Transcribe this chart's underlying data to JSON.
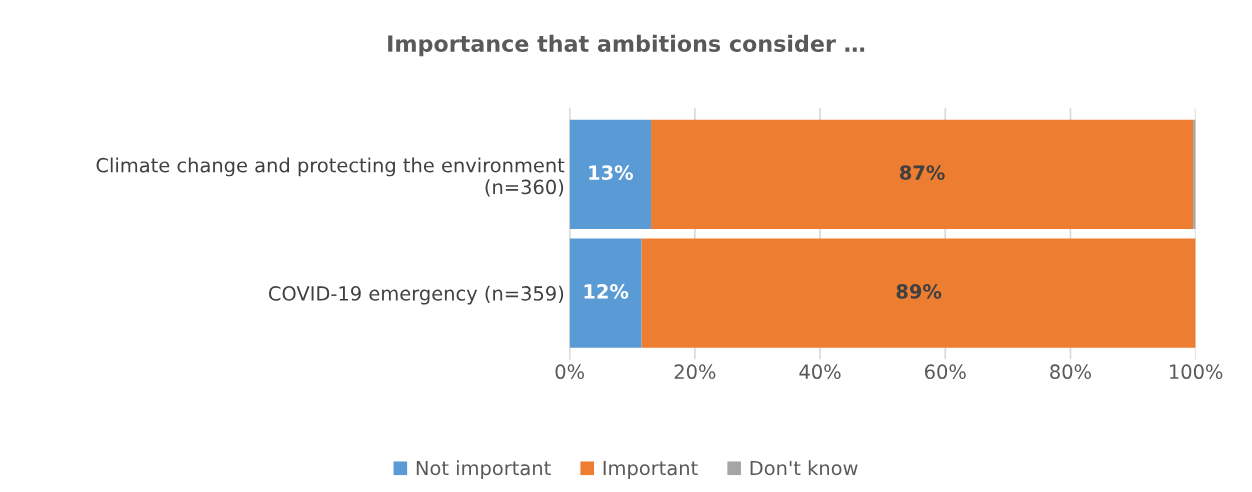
{
  "chart_data": {
    "type": "bar",
    "orientation": "horizontal",
    "stacked": true,
    "title": "Importance that ambitions consider …",
    "categories": [
      "Climate change and protecting the environment\n(n=360)",
      "COVID-19 emergency (n=359)"
    ],
    "series": [
      {
        "name": "Not important",
        "color": "#5b9bd5",
        "values": [
          13,
          11.5
        ],
        "value_labels": [
          "13%",
          "12%"
        ]
      },
      {
        "name": "Important",
        "color": "#ed7d31",
        "values": [
          86.6,
          88.5
        ],
        "value_labels": [
          "87%",
          "89%"
        ]
      },
      {
        "name": "Don't know",
        "color": "#a5a5a5",
        "values": [
          0.4,
          0
        ],
        "value_labels": [
          null,
          null
        ]
      }
    ],
    "xlim": [
      0,
      100
    ],
    "xticks": [
      {
        "value": 0,
        "label": "0%"
      },
      {
        "value": 20,
        "label": "20%"
      },
      {
        "value": 40,
        "label": "40%"
      },
      {
        "value": 60,
        "label": "60%"
      },
      {
        "value": 80,
        "label": "80%"
      },
      {
        "value": 100,
        "label": "100%"
      }
    ],
    "grid": "x",
    "legend": "bottom"
  }
}
